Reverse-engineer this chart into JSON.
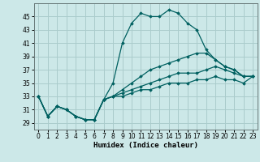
{
  "xlabel": "Humidex (Indice chaleur)",
  "xlim": [
    -0.5,
    23.5
  ],
  "ylim": [
    28.0,
    47.0
  ],
  "yticks": [
    29,
    31,
    33,
    35,
    37,
    39,
    41,
    43,
    45
  ],
  "xticks": [
    0,
    1,
    2,
    3,
    4,
    5,
    6,
    7,
    8,
    9,
    10,
    11,
    12,
    13,
    14,
    15,
    16,
    17,
    18,
    19,
    20,
    21,
    22,
    23
  ],
  "line_color": "#006060",
  "bg_color": "#cce8e8",
  "grid_color": "#aacccc",
  "series": [
    [
      33,
      30,
      31.5,
      31,
      30,
      29.5,
      29.5,
      32.5,
      35,
      41,
      44,
      45.5,
      45,
      45,
      46,
      45.5,
      44,
      43,
      40,
      38.5,
      37.5,
      37,
      36,
      36
    ],
    [
      33,
      30,
      31.5,
      31,
      30,
      29.5,
      29.5,
      32.5,
      33,
      34,
      35,
      36,
      37,
      37.5,
      38,
      38.5,
      39,
      39.5,
      39.5,
      38.5,
      37.5,
      37,
      36,
      36
    ],
    [
      33,
      30,
      31.5,
      31,
      30,
      29.5,
      29.5,
      32.5,
      33,
      33.5,
      34,
      34.5,
      35,
      35.5,
      36,
      36.5,
      36.5,
      36.5,
      37,
      37.5,
      37,
      36.5,
      36,
      36
    ],
    [
      33,
      30,
      31.5,
      31,
      30,
      29.5,
      29.5,
      32.5,
      33,
      33,
      33.5,
      34,
      34,
      34.5,
      35,
      35,
      35,
      35.5,
      35.5,
      36,
      35.5,
      35.5,
      35,
      36
    ]
  ]
}
